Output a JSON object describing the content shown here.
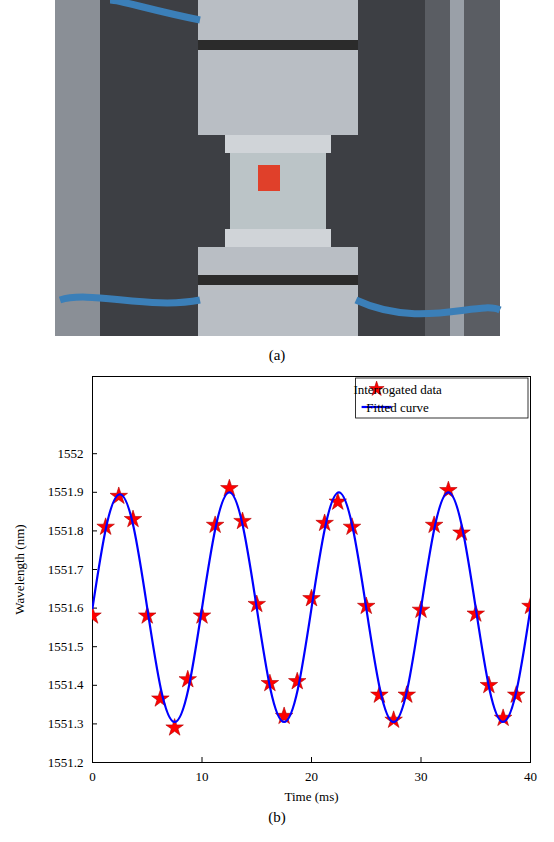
{
  "panel_labels": [
    "(a)",
    "(b)"
  ],
  "chart_data": {
    "type": "scatter",
    "x_label": "Time (ms)",
    "y_label": "Wavelength (nm)",
    "xlim": [
      0,
      40
    ],
    "xticks": [
      0,
      10,
      20,
      30,
      40
    ],
    "ylim": [
      1551.2,
      1552.2
    ],
    "yticks": [
      1551.2,
      1551.3,
      1551.4,
      1551.5,
      1551.6,
      1551.7,
      1551.8,
      1551.9,
      1552
    ],
    "legend": "upper right",
    "grid": false,
    "series": [
      {
        "name": "Interrogated data",
        "type": "scatter",
        "marker": "star",
        "color": "#ff0000",
        "x": [
          0,
          1.2,
          2.4,
          3.7,
          5.0,
          6.2,
          7.5,
          8.7,
          10.0,
          11.2,
          12.5,
          13.7,
          15.0,
          16.2,
          17.5,
          18.7,
          20.0,
          21.2,
          22.4,
          23.7,
          25.0,
          26.2,
          27.5,
          28.7,
          30.0,
          31.2,
          32.5,
          33.7,
          35.0,
          36.2,
          37.5,
          38.7,
          40.0
        ],
        "values": [
          1551.58,
          1551.81,
          1551.89,
          1551.83,
          1551.58,
          1551.365,
          1551.29,
          1551.415,
          1551.58,
          1551.815,
          1551.91,
          1551.825,
          1551.61,
          1551.405,
          1551.32,
          1551.41,
          1551.625,
          1551.82,
          1551.875,
          1551.81,
          1551.605,
          1551.375,
          1551.31,
          1551.375,
          1551.595,
          1551.815,
          1551.905,
          1551.795,
          1551.585,
          1551.4,
          1551.315,
          1551.375,
          1551.605
        ]
      },
      {
        "name": "Fitted curve",
        "type": "line",
        "line_style": "solid",
        "color": "#0000ff",
        "x": [
          0,
          1.25,
          2.5,
          3.75,
          5,
          6.25,
          7.5,
          8.75,
          10,
          11.25,
          12.5,
          13.75,
          15,
          16.25,
          17.5,
          18.75,
          20,
          21.25,
          22.5,
          23.75,
          25,
          26.25,
          27.5,
          28.75,
          30,
          31.25,
          32.5,
          33.75,
          35,
          36.25,
          37.5,
          38.75,
          40
        ],
        "values": [
          1551.6,
          1551.81,
          1551.895,
          1551.81,
          1551.6,
          1551.39,
          1551.305,
          1551.39,
          1551.6,
          1551.81,
          1551.9,
          1551.81,
          1551.6,
          1551.39,
          1551.305,
          1551.39,
          1551.6,
          1551.81,
          1551.9,
          1551.81,
          1551.6,
          1551.39,
          1551.305,
          1551.39,
          1551.6,
          1551.81,
          1551.9,
          1551.81,
          1551.6,
          1551.39,
          1551.305,
          1551.39,
          1551.6
        ]
      }
    ]
  }
}
